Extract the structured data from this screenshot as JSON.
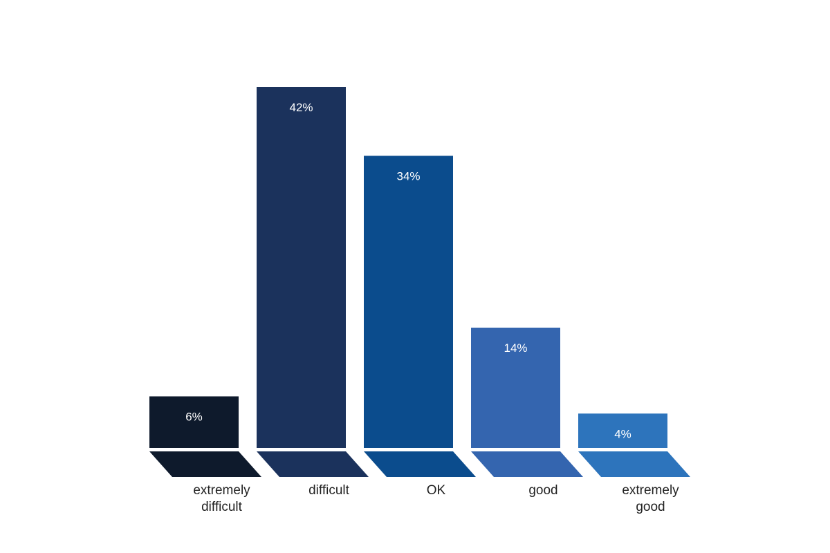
{
  "chart_data": {
    "type": "bar",
    "title": "",
    "xlabel": "",
    "ylabel": "",
    "ylim": [
      0,
      45
    ],
    "grid": false,
    "legend": "none",
    "categories": [
      [
        "extremely",
        "difficult"
      ],
      [
        "difficult"
      ],
      [
        "OK"
      ],
      [
        "good"
      ],
      [
        "extremely",
        "good"
      ]
    ],
    "values": [
      6,
      42,
      34,
      14,
      4
    ],
    "value_labels": [
      "6%",
      "42%",
      "34%",
      "14%",
      "4%"
    ],
    "colors": [
      "#0e1a2c",
      "#1b325c",
      "#0b4c8d",
      "#3465af",
      "#2d74bc"
    ]
  }
}
